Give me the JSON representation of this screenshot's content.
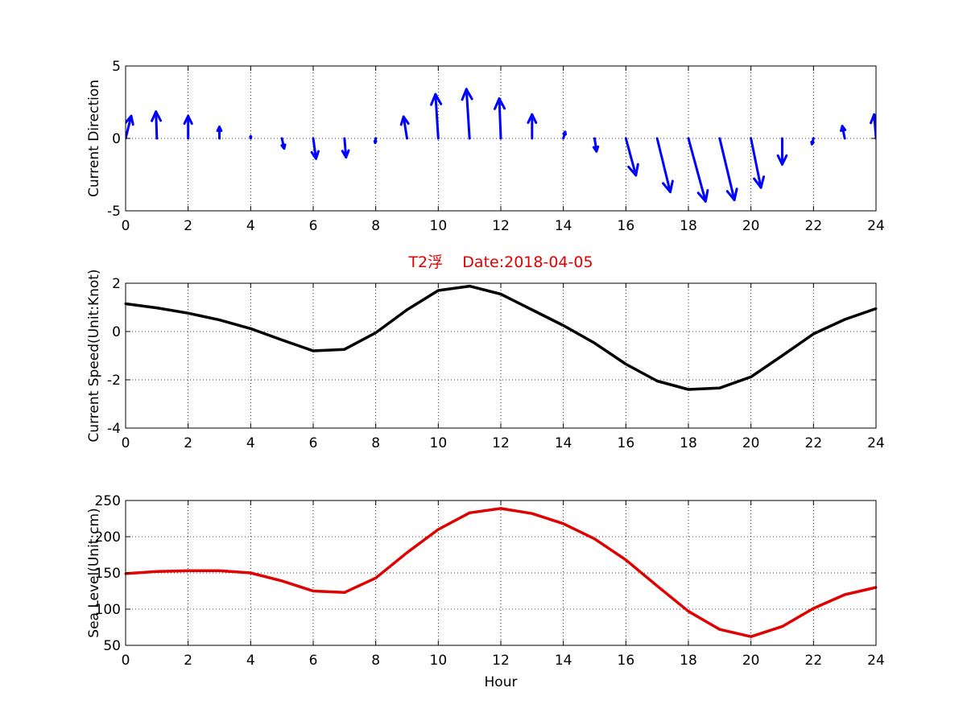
{
  "figure": {
    "title": "T2浮    Date:2018-04-05",
    "title_color": "#e00000"
  },
  "chart_data": [
    {
      "type": "quiver",
      "ylabel": "Current Direction",
      "xlabel": "",
      "xlim": [
        0,
        24
      ],
      "ylim": [
        -5,
        5
      ],
      "xticks": [
        0,
        2,
        4,
        6,
        8,
        10,
        12,
        14,
        16,
        18,
        20,
        22,
        24
      ],
      "yticks": [
        -5,
        0,
        5
      ],
      "grid": true,
      "color": "#0000ff",
      "x": [
        0,
        1,
        2,
        3,
        4,
        5,
        6,
        7,
        8,
        9,
        10,
        11,
        12,
        13,
        14,
        15,
        16,
        17,
        18,
        19,
        20,
        21,
        22,
        23,
        24
      ],
      "u": [
        0.18,
        -0.03,
        0.0,
        0.0,
        0.0,
        0.07,
        0.09,
        0.05,
        -0.02,
        -0.11,
        -0.09,
        -0.1,
        -0.05,
        0.0,
        0.06,
        0.06,
        0.32,
        0.42,
        0.55,
        0.47,
        0.32,
        0.0,
        -0.05,
        -0.08,
        -0.06
      ],
      "v": [
        1.55,
        1.85,
        1.55,
        0.8,
        0.15,
        -0.7,
        -1.4,
        -1.3,
        -0.3,
        1.5,
        3.05,
        3.4,
        2.75,
        1.65,
        0.45,
        -0.9,
        -2.55,
        -3.7,
        -4.35,
        -4.25,
        -3.4,
        -1.8,
        -0.4,
        0.85,
        1.65
      ]
    },
    {
      "type": "line",
      "ylabel": "Current Speed(Unit:Knot)",
      "xlabel": "",
      "xlim": [
        0,
        24
      ],
      "ylim": [
        -4,
        2
      ],
      "xticks": [
        0,
        2,
        4,
        6,
        8,
        10,
        12,
        14,
        16,
        18,
        20,
        22,
        24
      ],
      "yticks": [
        -4,
        -2,
        0,
        2
      ],
      "grid": true,
      "color": "#000000",
      "x": [
        0,
        1,
        2,
        3,
        4,
        5,
        6,
        7,
        8,
        9,
        10,
        11,
        12,
        13,
        14,
        15,
        16,
        17,
        18,
        19,
        20,
        21,
        22,
        23,
        24
      ],
      "y": [
        1.15,
        0.98,
        0.76,
        0.48,
        0.12,
        -0.35,
        -0.8,
        -0.74,
        -0.05,
        0.9,
        1.7,
        1.88,
        1.55,
        0.9,
        0.25,
        -0.48,
        -1.35,
        -2.05,
        -2.4,
        -2.34,
        -1.88,
        -1.0,
        -0.1,
        0.5,
        0.95
      ]
    },
    {
      "type": "line",
      "ylabel": "Sea Level(Unit:cm)",
      "xlabel": "Hour",
      "xlim": [
        0,
        24
      ],
      "ylim": [
        50,
        250
      ],
      "xticks": [
        0,
        2,
        4,
        6,
        8,
        10,
        12,
        14,
        16,
        18,
        20,
        22,
        24
      ],
      "yticks": [
        50,
        100,
        150,
        200,
        250
      ],
      "grid": true,
      "color": "#e00000",
      "x": [
        0,
        1,
        2,
        3,
        4,
        5,
        6,
        7,
        8,
        9,
        10,
        11,
        12,
        13,
        14,
        15,
        16,
        17,
        18,
        19,
        20,
        21,
        22,
        23,
        24
      ],
      "y": [
        149,
        152,
        153,
        153,
        150,
        139,
        125,
        123,
        143,
        178,
        210,
        233,
        239,
        232,
        218,
        197,
        168,
        132,
        97,
        72,
        62,
        76,
        101,
        120,
        130
      ]
    }
  ]
}
